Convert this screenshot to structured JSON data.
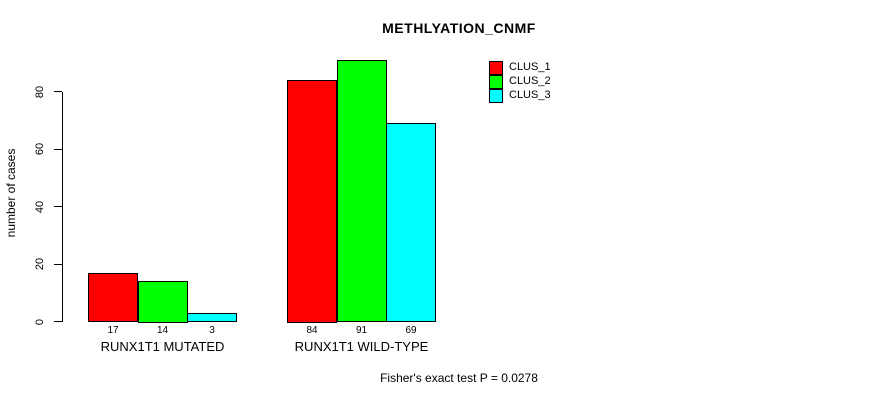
{
  "title": "METHLYATION_CNMF",
  "ylabel": "number of cases",
  "footer": "Fisher's exact test P = 0.0278",
  "legend": [
    {
      "label": "CLUS_1",
      "color": "#ff0000"
    },
    {
      "label": "CLUS_2",
      "color": "#00ff00"
    },
    {
      "label": "CLUS_3",
      "color": "#00ffff"
    }
  ],
  "chart_data": {
    "type": "bar",
    "title": "METHLYATION_CNMF",
    "ylabel": "number of cases",
    "xlabel": "",
    "categories": [
      "RUNX1T1 MUTATED",
      "RUNX1T1 WILD-TYPE"
    ],
    "series": [
      {
        "name": "CLUS_1",
        "color": "#ff0000",
        "values": [
          17,
          84
        ]
      },
      {
        "name": "CLUS_2",
        "color": "#00ff00",
        "values": [
          14,
          91
        ]
      },
      {
        "name": "CLUS_3",
        "color": "#00ffff",
        "values": [
          3,
          69
        ]
      }
    ],
    "bar_value_labels": [
      [
        "17",
        "14",
        "3"
      ],
      [
        "84",
        "91",
        "69"
      ]
    ],
    "yticks": [
      0,
      20,
      40,
      60,
      80
    ],
    "ylim": [
      0,
      91
    ],
    "grid": false,
    "legend_position": "top-right",
    "annotation": "Fisher's exact test P = 0.0278"
  }
}
